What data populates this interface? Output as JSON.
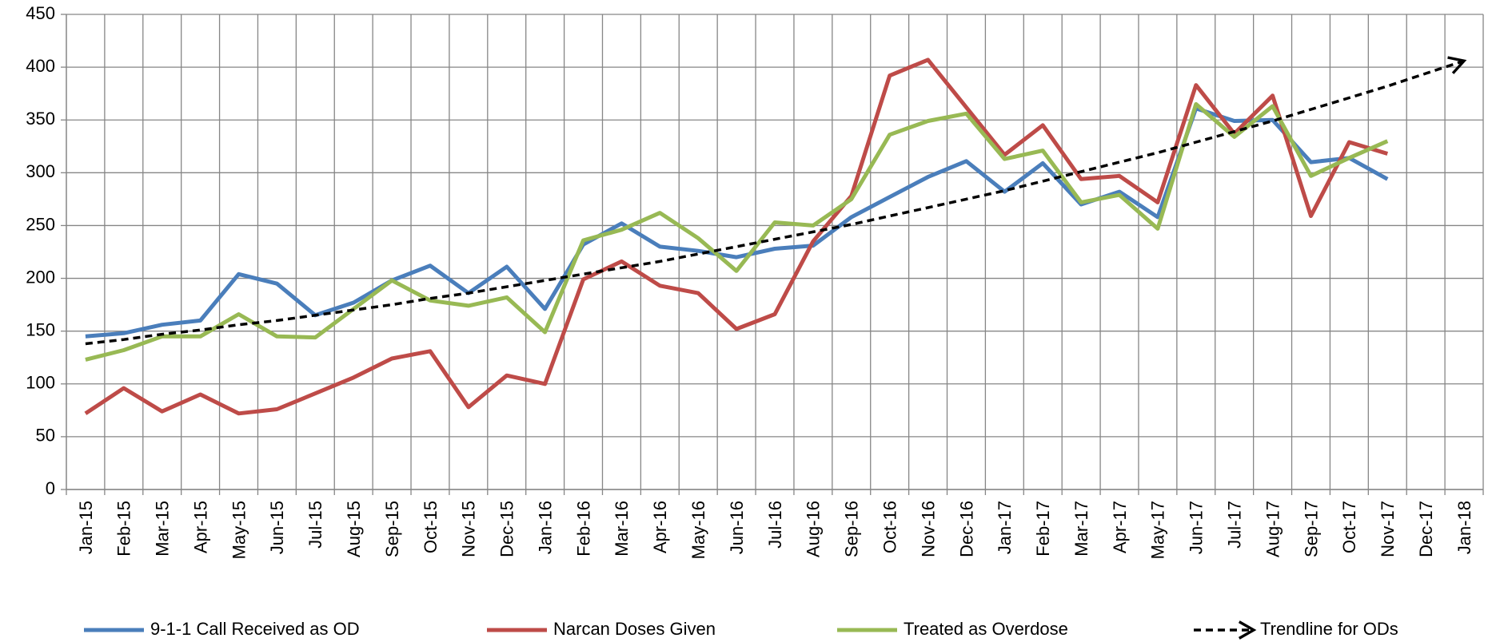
{
  "chart_data": {
    "type": "line",
    "categories": [
      "Jan-15",
      "Feb-15",
      "Mar-15",
      "Apr-15",
      "May-15",
      "Jun-15",
      "Jul-15",
      "Aug-15",
      "Sep-15",
      "Oct-15",
      "Nov-15",
      "Dec-15",
      "Jan-16",
      "Feb-16",
      "Mar-16",
      "Apr-16",
      "May-16",
      "Jun-16",
      "Jul-16",
      "Aug-16",
      "Sep-16",
      "Oct-16",
      "Nov-16",
      "Dec-16",
      "Jan-17",
      "Feb-17",
      "Mar-17",
      "Apr-17",
      "May-17",
      "Jun-17",
      "Jul-17",
      "Aug-17",
      "Sep-17",
      "Oct-17",
      "Nov-17",
      "Dec-17",
      "Jan-18"
    ],
    "series": [
      {
        "name": "9-1-1 Call Received as OD",
        "color": "#4a7ebb",
        "style": "solid",
        "values": [
          145,
          148,
          156,
          160,
          204,
          195,
          165,
          177,
          198,
          212,
          186,
          211,
          171,
          232,
          252,
          230,
          226,
          220,
          228,
          231,
          258,
          277,
          296,
          311,
          282,
          309,
          270,
          282,
          258,
          361,
          349,
          350,
          310,
          314,
          294,
          null,
          null
        ]
      },
      {
        "name": "Narcan Doses Given",
        "color": "#be4b48",
        "style": "solid",
        "values": [
          72,
          96,
          74,
          90,
          72,
          76,
          91,
          106,
          124,
          131,
          78,
          108,
          100,
          199,
          216,
          193,
          186,
          152,
          166,
          235,
          278,
          392,
          407,
          362,
          317,
          345,
          294,
          297,
          272,
          383,
          337,
          373,
          259,
          329,
          318,
          null,
          null
        ]
      },
      {
        "name": "Treated as Overdose",
        "color": "#98b954",
        "style": "solid",
        "values": [
          123,
          132,
          145,
          145,
          166,
          145,
          144,
          171,
          198,
          179,
          174,
          182,
          149,
          236,
          246,
          262,
          238,
          207,
          253,
          250,
          275,
          336,
          349,
          356,
          313,
          321,
          272,
          279,
          247,
          365,
          334,
          363,
          297,
          314,
          330,
          null,
          null
        ]
      },
      {
        "name": "Trendline for ODs",
        "color": "#000000",
        "style": "dashed-arrow",
        "values": [
          138,
          142,
          147,
          151,
          156,
          160,
          165,
          170,
          175,
          181,
          186,
          192,
          198,
          204,
          210,
          216,
          223,
          230,
          237,
          244,
          251,
          259,
          267,
          275,
          283,
          292,
          301,
          310,
          319,
          329,
          339,
          349,
          360,
          371,
          382,
          394,
          406
        ]
      }
    ],
    "ylim": [
      0,
      450
    ],
    "yticks": [
      0,
      50,
      100,
      150,
      200,
      250,
      300,
      350,
      400,
      450
    ],
    "grid": true,
    "legend": "bottom"
  }
}
